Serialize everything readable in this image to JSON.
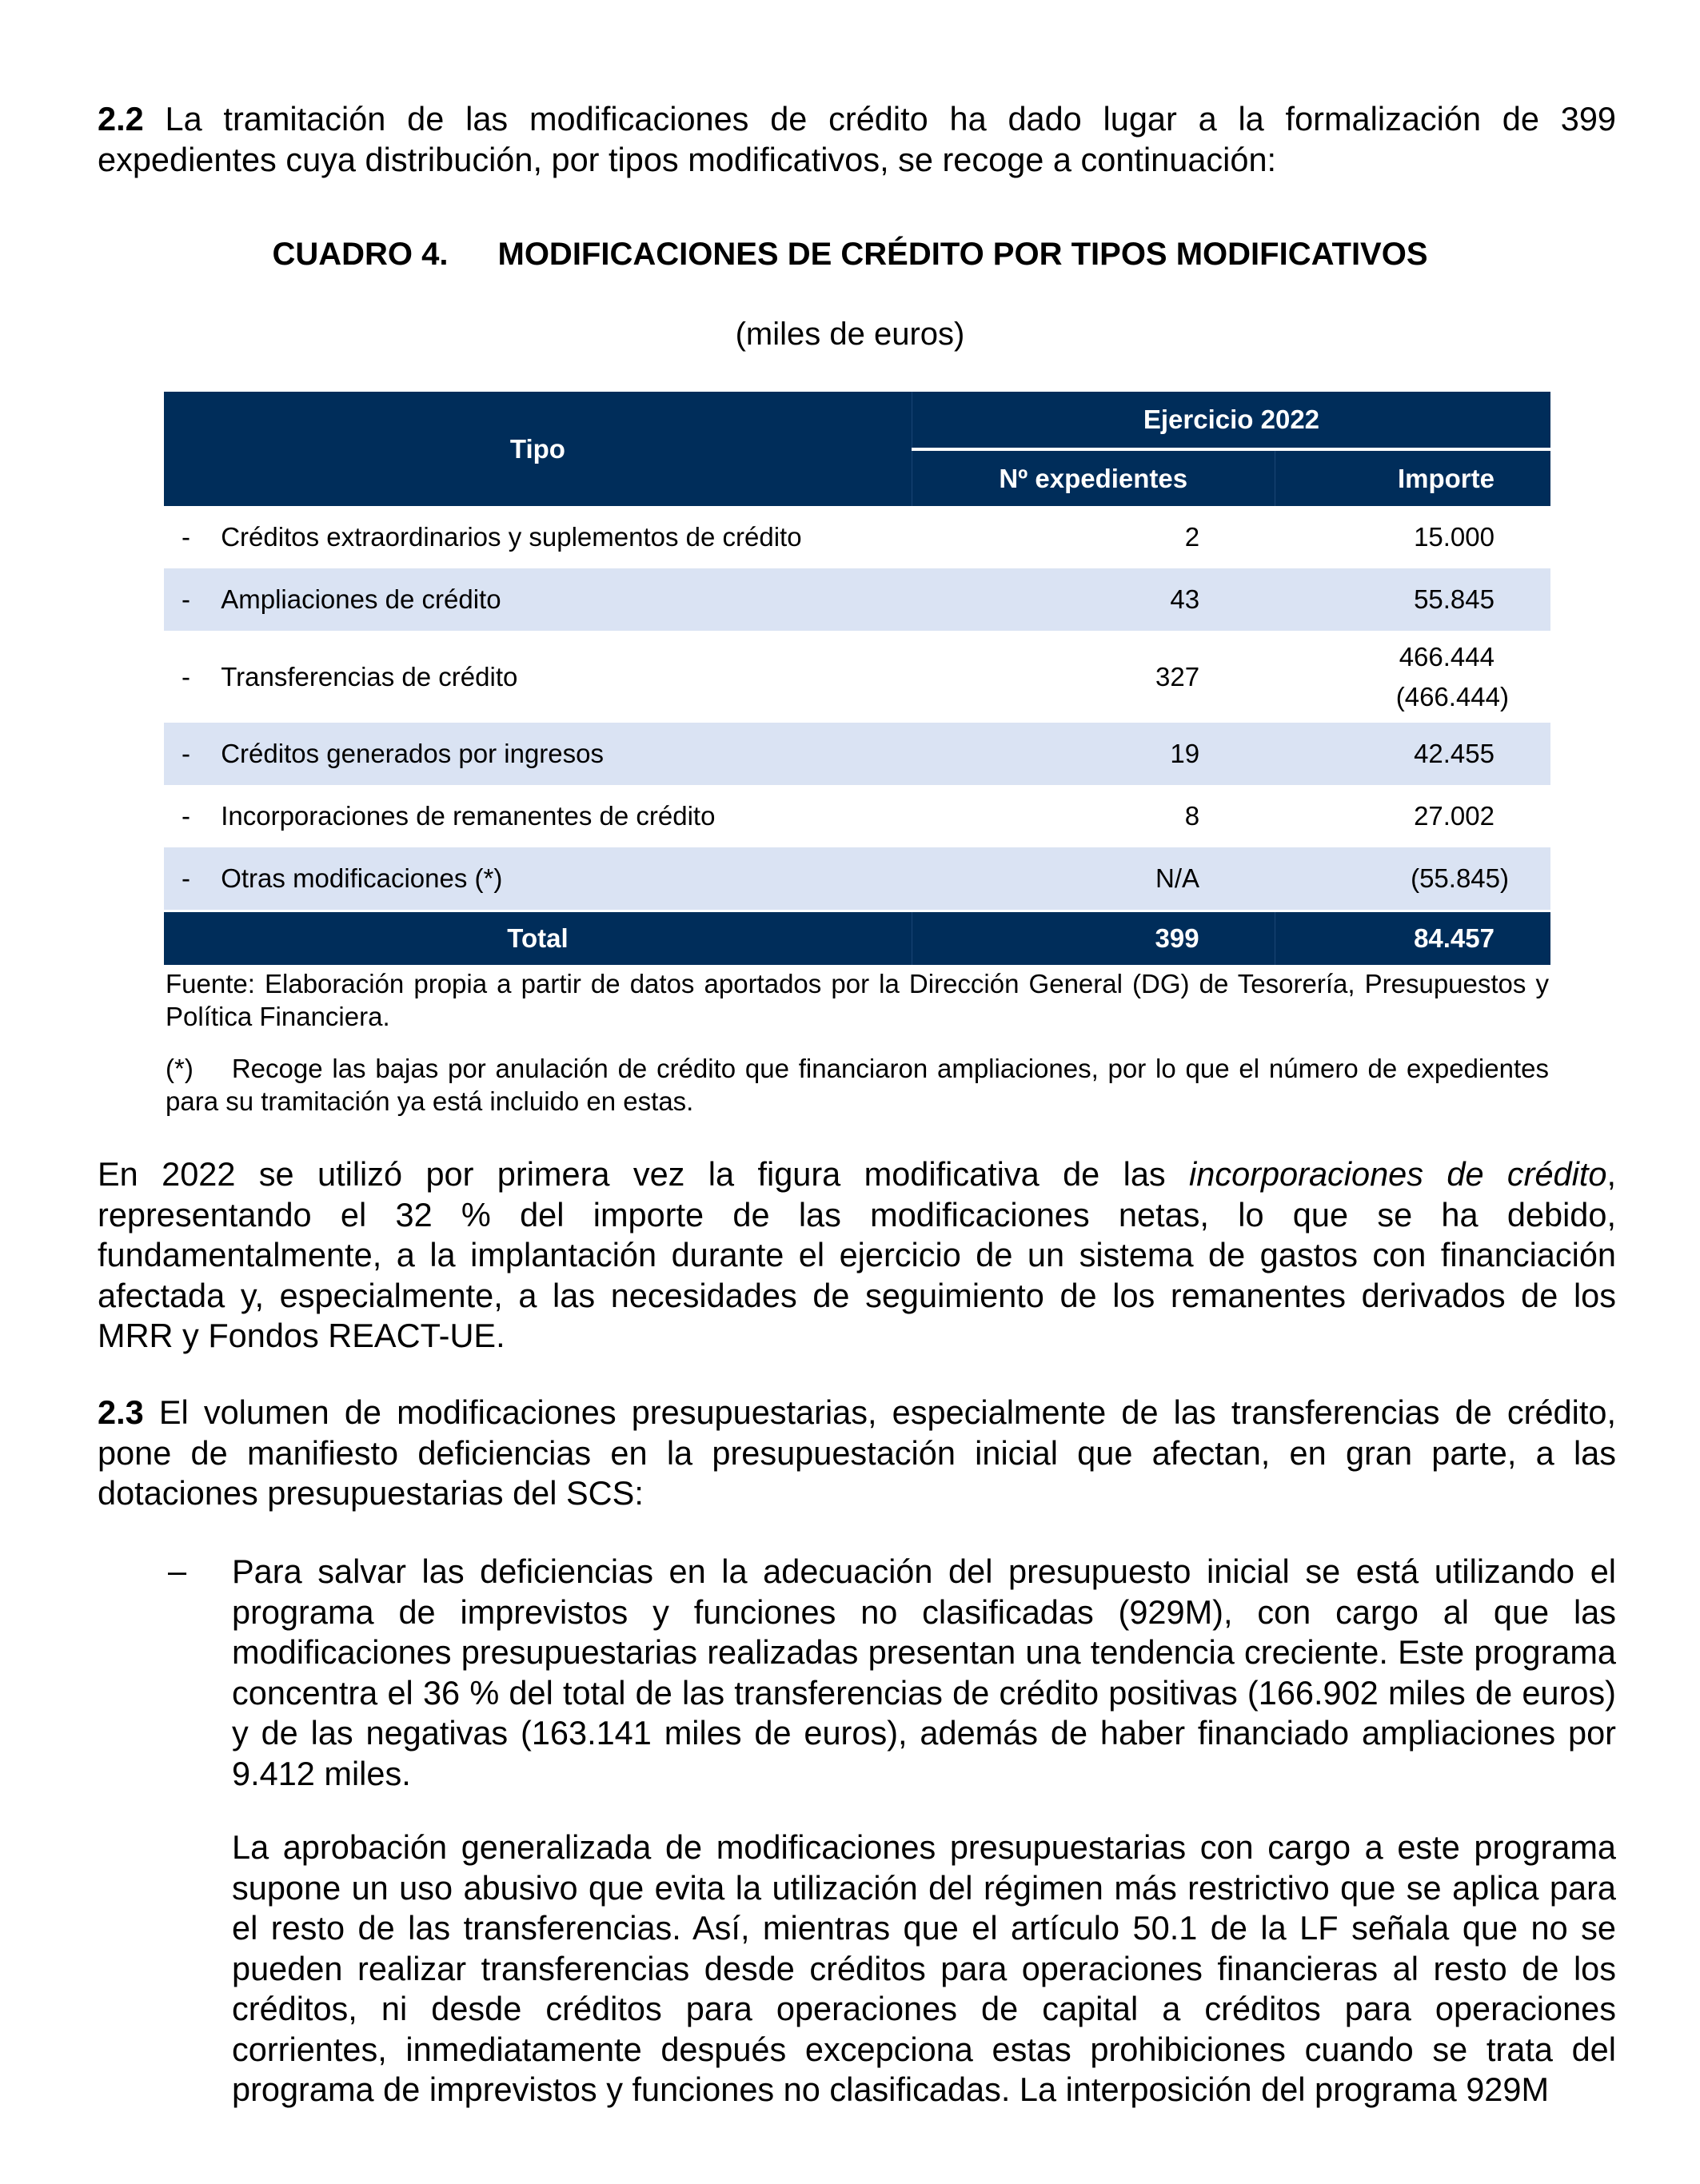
{
  "para_2_2": {
    "num": "2.2",
    "text": " La tramitación de las modificaciones de crédito ha dado lugar a la formalización de 399 expedientes cuya distribución, por tipos modificativos, se recoge a continuación:"
  },
  "table_title": {
    "label": "CUADRO 4.",
    "text": "MODIFICACIONES DE CRÉDITO POR TIPOS MODIFICATIVOS"
  },
  "units": "(miles de euros)",
  "table": {
    "header_tipo": "Tipo",
    "header_group": "Ejercicio 2022",
    "header_exp": "Nº expedientes",
    "header_imp": "Importe",
    "rows": [
      {
        "dash": "-",
        "tipo": "Créditos extraordinarios y suplementos de crédito",
        "exp": "2",
        "imp": "15.000",
        "imp2": ""
      },
      {
        "dash": "-",
        "tipo": "Ampliaciones de crédito",
        "exp": "43",
        "imp": "55.845",
        "imp2": ""
      },
      {
        "dash": "-",
        "tipo": "Transferencias de crédito",
        "exp": "327",
        "imp": "466.444",
        "imp2": "(466.444)"
      },
      {
        "dash": "-",
        "tipo": "Créditos generados por ingresos",
        "exp": "19",
        "imp": "42.455",
        "imp2": ""
      },
      {
        "dash": "-",
        "tipo": "Incorporaciones de remanentes de crédito",
        "exp": "8",
        "imp": "27.002",
        "imp2": ""
      },
      {
        "dash": "-",
        "tipo": "Otras modificaciones (*)",
        "exp": "N/A",
        "imp": "(55.845)",
        "imp2": ""
      }
    ],
    "total": {
      "label": "Total",
      "exp": "399",
      "imp": "84.457"
    }
  },
  "source": "Fuente: Elaboración propia a partir de datos aportados por la Dirección General (DG) de Tesorería, Presupuestos y Política Financiera.",
  "footnote": {
    "mark": "(*)",
    "text": "Recoge las bajas por anulación de crédito que financiaron ampliaciones, por lo que el número de expedientes para su tramitación ya está incluido en estas."
  },
  "para_2022": {
    "a": "En 2022 se utilizó por primera vez la figura modificativa de las ",
    "em": "incorporaciones de crédito",
    "b": ", representando el 32 % del importe de las modificaciones netas, lo que se ha debido, fundamentalmente, a la implantación durante el ejercicio de un sistema de gastos con financiación afectada y, especialmente, a las necesidades de seguimiento de los remanentes derivados de los MRR y Fondos REACT-UE."
  },
  "para_2_3": {
    "num": "2.3",
    "text": " El volumen de modificaciones presupuestarias, especialmente de las transferencias de crédito, pone de manifiesto deficiencias en la presupuestación inicial que afectan, en gran parte, a las dotaciones presupuestarias del SCS:"
  },
  "bullet": {
    "dash": "–",
    "text": "Para salvar las deficiencias en la adecuación del presupuesto inicial se está utilizando el programa de imprevistos y funciones no clasificadas (929M), con cargo al que las modificaciones presupuestarias realizadas presentan una tendencia creciente. Este programa concentra el 36 % del total de las transferencias de crédito positivas (166.902 miles de euros) y de las negativas (163.141 miles de euros), además de haber financiado ampliaciones por 9.412 miles."
  },
  "bullet_para2": "La aprobación generalizada de modificaciones presupuestarias con cargo a este programa supone un uso abusivo que evita la utilización del régimen más restrictivo que se aplica para el resto de las transferencias. Así, mientras que el artículo 50.1 de la LF señala que no se pueden realizar transferencias desde créditos para operaciones financieras al resto de los créditos, ni desde créditos para operaciones de capital a créditos para operaciones corrientes, inmediatamente después excepciona estas prohibiciones cuando se trata del programa de imprevistos y funciones no clasificadas. La interposición del programa 929M",
  "colors": {
    "header": "#002d5a",
    "alt_row": "#dae3f3"
  }
}
